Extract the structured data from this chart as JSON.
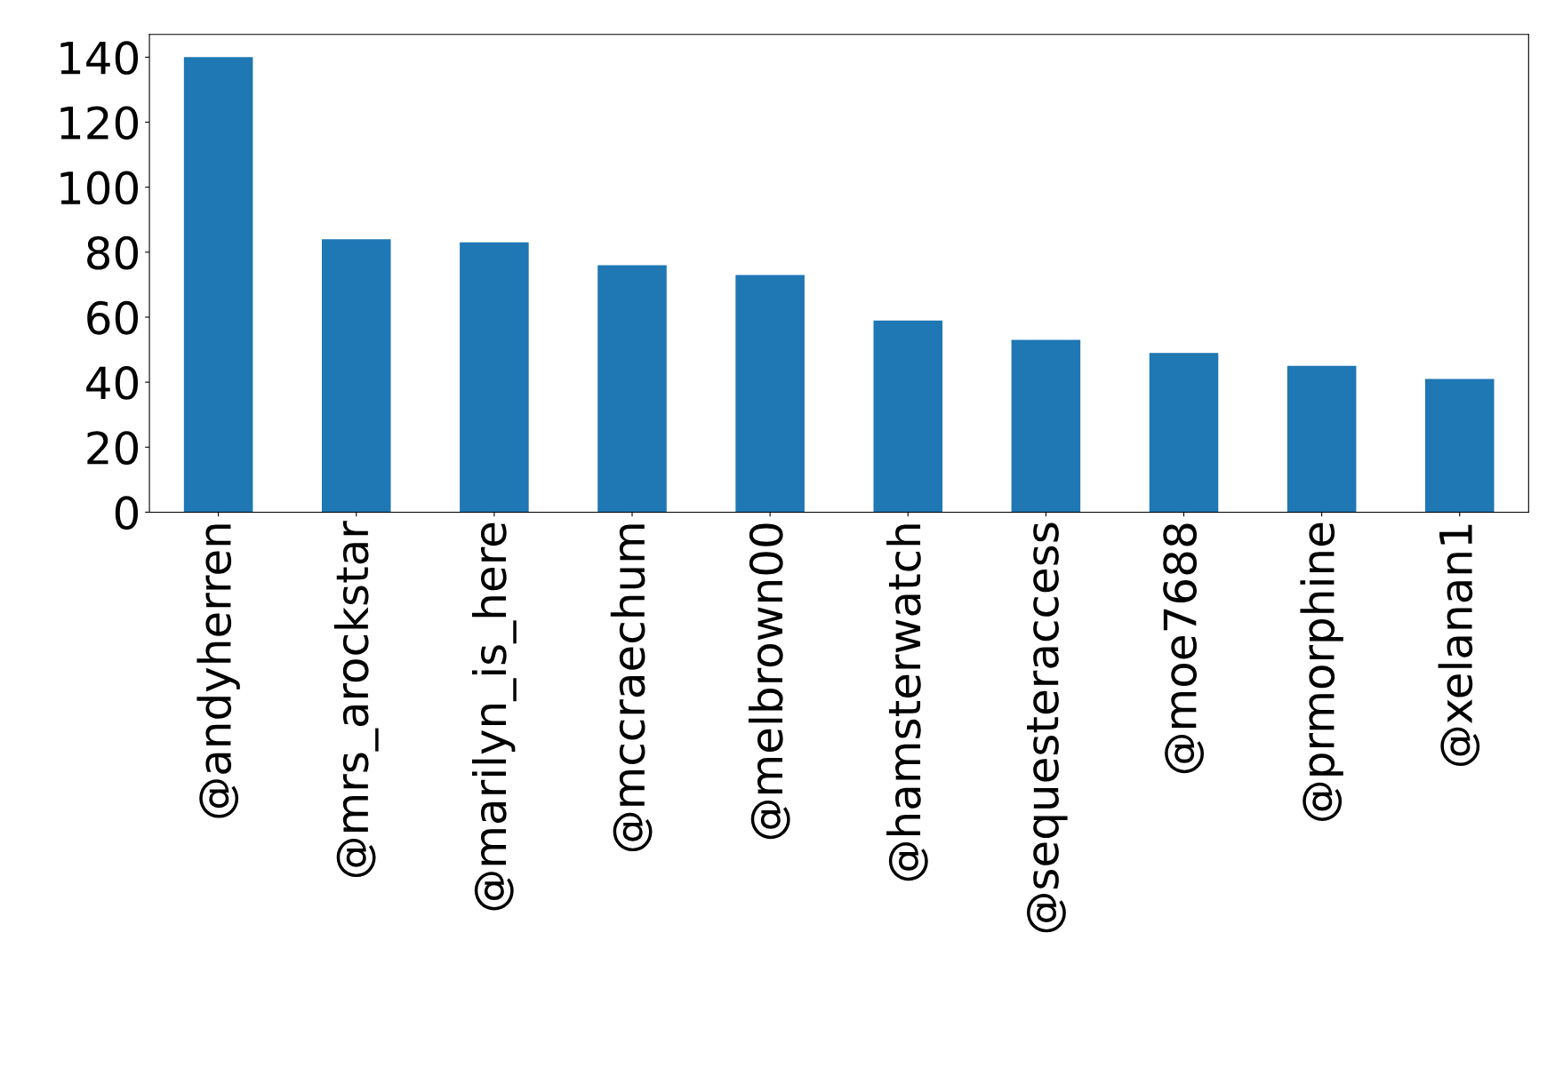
{
  "chart_data": {
    "type": "bar",
    "categories": [
      "@andyherren",
      "@mrs_arockstar",
      "@marilyn_is_here",
      "@mccraechum",
      "@melbrown00",
      "@hamsterwatch",
      "@sequesteraccess",
      "@moe7688",
      "@prmorphine",
      "@xelanan1"
    ],
    "values": [
      140,
      84,
      83,
      76,
      73,
      59,
      53,
      49,
      45,
      41
    ],
    "color": "#1f77b4",
    "ylim": [
      0,
      147
    ],
    "yticks": [
      0,
      20,
      40,
      60,
      80,
      100,
      120,
      140
    ],
    "grid": false
  }
}
